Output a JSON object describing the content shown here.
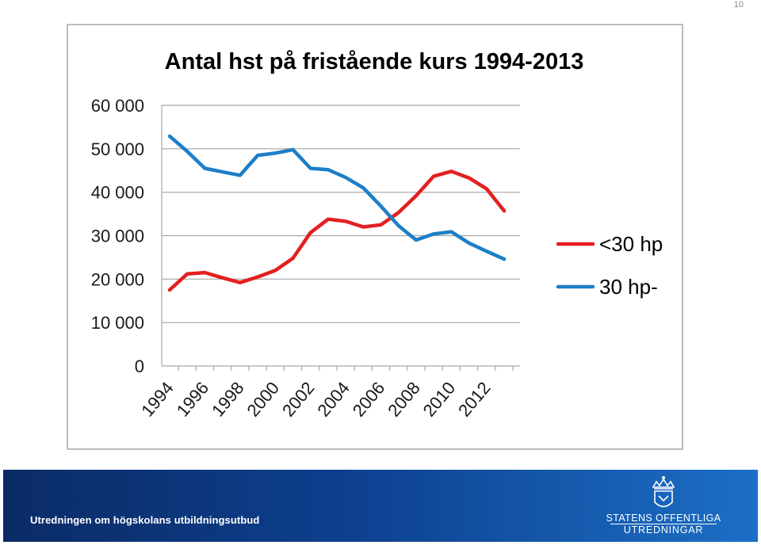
{
  "page": {
    "number": "10"
  },
  "footer": {
    "title": "Utredningen om högskolans utbildningsutbud",
    "logo_line1": "STATENS OFFENTLIGA",
    "logo_line2": "UTREDNINGAR",
    "logo_icon": "crown-shield-emblem"
  },
  "colors": {
    "series_under30": "#e41f1f",
    "series_30plus": "#1c7fc8",
    "footer_start": "#0b2b66",
    "footer_end": "#1c6fc6"
  },
  "chart_data": {
    "type": "line",
    "title": "Antal hst på fristående kurs 1994-2013",
    "xlabel": "",
    "ylabel": "",
    "x": [
      1994,
      1995,
      1996,
      1997,
      1998,
      1999,
      2000,
      2001,
      2002,
      2003,
      2004,
      2005,
      2006,
      2007,
      2008,
      2009,
      2010,
      2011,
      2012,
      2013
    ],
    "x_tick_labels": [
      "1994",
      "1996",
      "1998",
      "2000",
      "2002",
      "2004",
      "2006",
      "2008",
      "2010",
      "2012"
    ],
    "y_tick_labels": [
      "0",
      "10 000",
      "20 000",
      "30 000",
      "40 000",
      "50 000",
      "60 000"
    ],
    "ylim": [
      0,
      60000
    ],
    "grid": true,
    "legend_position": "right",
    "series": [
      {
        "name": "<30 hp",
        "values": [
          17500,
          21200,
          21500,
          20300,
          19200,
          20500,
          22000,
          24800,
          30700,
          33800,
          33300,
          32000,
          32500,
          35300,
          39200,
          43700,
          44800,
          43300,
          40800,
          35700
        ]
      },
      {
        "name": "30 hp-",
        "values": [
          52900,
          49400,
          45500,
          44700,
          43900,
          48500,
          49000,
          49800,
          45500,
          45200,
          43400,
          41000,
          36800,
          32300,
          29000,
          30400,
          30900,
          28300,
          26400,
          24600
        ]
      }
    ]
  }
}
